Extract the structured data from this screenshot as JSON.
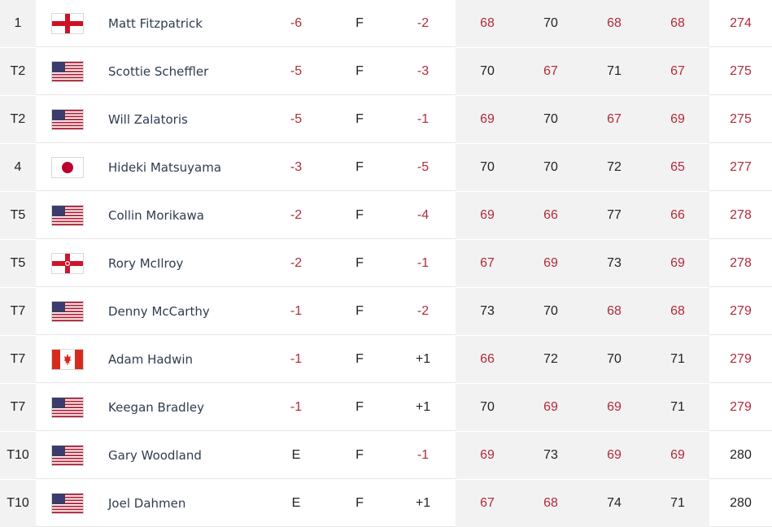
{
  "colors": {
    "under_par": "#b22a3a",
    "neutral": "#222222",
    "name": "#2f3c52",
    "shade": "#f2f2f2"
  },
  "leaderboard": {
    "rows": [
      {
        "pos": "1",
        "flag": "england-flag-icon",
        "player": "Matt Fitzpatrick",
        "to_par": "-6",
        "thru": "F",
        "today": "-2",
        "r1": "68",
        "r2": "70",
        "r3": "68",
        "r4": "68",
        "total": "274"
      },
      {
        "pos": "T2",
        "flag": "usa-flag-icon",
        "player": "Scottie Scheffler",
        "to_par": "-5",
        "thru": "F",
        "today": "-3",
        "r1": "70",
        "r2": "67",
        "r3": "71",
        "r4": "67",
        "total": "275"
      },
      {
        "pos": "T2",
        "flag": "usa-flag-icon",
        "player": "Will Zalatoris",
        "to_par": "-5",
        "thru": "F",
        "today": "-1",
        "r1": "69",
        "r2": "70",
        "r3": "67",
        "r4": "69",
        "total": "275"
      },
      {
        "pos": "4",
        "flag": "japan-flag-icon",
        "player": "Hideki Matsuyama",
        "to_par": "-3",
        "thru": "F",
        "today": "-5",
        "r1": "70",
        "r2": "70",
        "r3": "72",
        "r4": "65",
        "total": "277"
      },
      {
        "pos": "T5",
        "flag": "usa-flag-icon",
        "player": "Collin Morikawa",
        "to_par": "-2",
        "thru": "F",
        "today": "-4",
        "r1": "69",
        "r2": "66",
        "r3": "77",
        "r4": "66",
        "total": "278"
      },
      {
        "pos": "T5",
        "flag": "northern-ireland-flag-icon",
        "player": "Rory McIlroy",
        "to_par": "-2",
        "thru": "F",
        "today": "-1",
        "r1": "67",
        "r2": "69",
        "r3": "73",
        "r4": "69",
        "total": "278"
      },
      {
        "pos": "T7",
        "flag": "usa-flag-icon",
        "player": "Denny McCarthy",
        "to_par": "-1",
        "thru": "F",
        "today": "-2",
        "r1": "73",
        "r2": "70",
        "r3": "68",
        "r4": "68",
        "total": "279"
      },
      {
        "pos": "T7",
        "flag": "canada-flag-icon",
        "player": "Adam Hadwin",
        "to_par": "-1",
        "thru": "F",
        "today": "+1",
        "r1": "66",
        "r2": "72",
        "r3": "70",
        "r4": "71",
        "total": "279"
      },
      {
        "pos": "T7",
        "flag": "usa-flag-icon",
        "player": "Keegan Bradley",
        "to_par": "-1",
        "thru": "F",
        "today": "+1",
        "r1": "70",
        "r2": "69",
        "r3": "69",
        "r4": "71",
        "total": "279"
      },
      {
        "pos": "T10",
        "flag": "usa-flag-icon",
        "player": "Gary Woodland",
        "to_par": "E",
        "thru": "F",
        "today": "-1",
        "r1": "69",
        "r2": "73",
        "r3": "69",
        "r4": "69",
        "total": "280"
      },
      {
        "pos": "T10",
        "flag": "usa-flag-icon",
        "player": "Joel Dahmen",
        "to_par": "E",
        "thru": "F",
        "today": "+1",
        "r1": "67",
        "r2": "68",
        "r3": "74",
        "r4": "71",
        "total": "280"
      }
    ]
  }
}
